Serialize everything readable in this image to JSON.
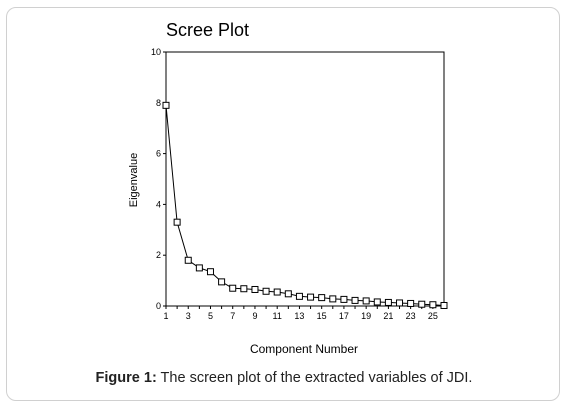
{
  "chart_data": {
    "type": "line",
    "title": "Scree Plot",
    "xlabel": "Component Number",
    "ylabel": "Eigenvalue",
    "xlim": [
      1,
      26
    ],
    "ylim": [
      0,
      10
    ],
    "x_ticks": [
      "1",
      "3",
      "5",
      "7",
      "9",
      "11",
      "13",
      "15",
      "17",
      "19",
      "21",
      "23",
      "25"
    ],
    "y_ticks": [
      "0",
      "2",
      "4",
      "6",
      "8",
      "10"
    ],
    "x": [
      1,
      2,
      3,
      4,
      5,
      6,
      7,
      8,
      9,
      10,
      11,
      12,
      13,
      14,
      15,
      16,
      17,
      18,
      19,
      20,
      21,
      22,
      23,
      24,
      25,
      26
    ],
    "series": [
      {
        "values": [
          7.9,
          3.3,
          1.8,
          1.5,
          1.35,
          0.95,
          0.7,
          0.68,
          0.65,
          0.58,
          0.55,
          0.48,
          0.38,
          0.35,
          0.33,
          0.28,
          0.26,
          0.22,
          0.2,
          0.16,
          0.14,
          0.12,
          0.1,
          0.07,
          0.05,
          0.02
        ]
      }
    ],
    "grid": false,
    "marker": "hollow-square",
    "line_color": "#000000"
  },
  "caption": {
    "label": "Figure 1:",
    "text": "The screen plot of the extracted variables of JDI."
  }
}
